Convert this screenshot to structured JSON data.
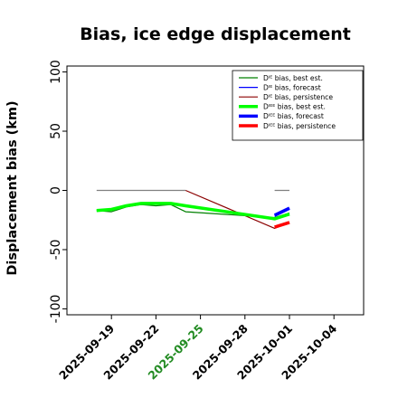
{
  "chart_data": {
    "type": "line",
    "title": "Bias, ice edge displacement",
    "ylabel": "Displacement bias (km)",
    "xlabel": "",
    "ylim": [
      -105,
      105
    ],
    "xlim": [
      "2025-09-16",
      "2025-10-06"
    ],
    "grid": false,
    "legend_position": "top-right",
    "yticks": [
      100,
      50,
      0,
      -50,
      -100
    ],
    "xticks": [
      {
        "date": "2025-09-19",
        "label": "2025-09-19",
        "color": "#000000"
      },
      {
        "date": "2025-09-22",
        "label": "2025-09-22",
        "color": "#000000"
      },
      {
        "date": "2025-09-25",
        "label": "2025-09-25",
        "color": "#228b22"
      },
      {
        "date": "2025-09-28",
        "label": "2025-09-28",
        "color": "#000000"
      },
      {
        "date": "2025-10-01",
        "label": "2025-10-01",
        "color": "#000000"
      },
      {
        "date": "2025-10-04",
        "label": "2025-10-04",
        "color": "#000000"
      }
    ],
    "series": [
      {
        "name": "Dᴵᴱ bias, best est.",
        "color": "#008000",
        "width": 1.2,
        "zorder": 2,
        "points": [
          [
            "2025-09-18",
            -17
          ],
          [
            "2025-09-19",
            -18
          ],
          [
            "2025-09-20",
            -14
          ],
          [
            "2025-09-21",
            -12
          ],
          [
            "2025-09-22",
            -13
          ],
          [
            "2025-09-23",
            -12
          ],
          [
            "2025-09-24",
            -18
          ],
          [
            "2025-09-30",
            -23
          ],
          [
            "2025-10-01",
            -19
          ]
        ]
      },
      {
        "name": "Dᴵᴱ bias, forecast",
        "color": "#0000ff",
        "width": 1.2,
        "zorder": 2,
        "points": [
          [
            "2025-09-30",
            -22
          ],
          [
            "2025-10-01",
            -16
          ]
        ]
      },
      {
        "name": "Dᴵᴱ bias, persistence",
        "color": "#8b0000",
        "width": 1.2,
        "zorder": 1,
        "points": [
          [
            "2025-09-24",
            0
          ],
          [
            "2025-09-30",
            -32
          ],
          [
            "2025-10-01",
            -27
          ]
        ]
      },
      {
        "name": "Dᴵᴱᴱ bias, best est.",
        "color": "#00ff00",
        "width": 3.5,
        "zorder": 3,
        "points": [
          [
            "2025-09-18",
            -17
          ],
          [
            "2025-09-19",
            -16
          ],
          [
            "2025-09-20",
            -13
          ],
          [
            "2025-09-21",
            -11
          ],
          [
            "2025-09-22",
            -11
          ],
          [
            "2025-09-23",
            -11
          ],
          [
            "2025-09-24",
            -13
          ],
          [
            "2025-09-30",
            -24
          ],
          [
            "2025-10-01",
            -20
          ]
        ]
      },
      {
        "name": "Dᴵᴱᴱ bias, forecast",
        "color": "#0000ff",
        "width": 3.5,
        "zorder": 4,
        "points": [
          [
            "2025-09-30",
            -21
          ],
          [
            "2025-10-01",
            -15
          ]
        ]
      },
      {
        "name": "Dᴵᴱᴱ bias, persistence",
        "color": "#ff0000",
        "width": 3.5,
        "zorder": 4,
        "points": [
          [
            "2025-09-30",
            -31
          ],
          [
            "2025-10-01",
            -27
          ]
        ]
      },
      {
        "name": "",
        "color": "#808080",
        "width": 1.2,
        "zorder": 0,
        "legend": false,
        "points": [
          [
            "2025-09-18",
            0
          ],
          [
            "2025-09-24",
            0
          ]
        ]
      },
      {
        "name": "",
        "color": "#808080",
        "width": 1.2,
        "zorder": 0,
        "legend": false,
        "points": [
          [
            "2025-09-30",
            0
          ],
          [
            "2025-10-01",
            0
          ]
        ]
      }
    ]
  }
}
